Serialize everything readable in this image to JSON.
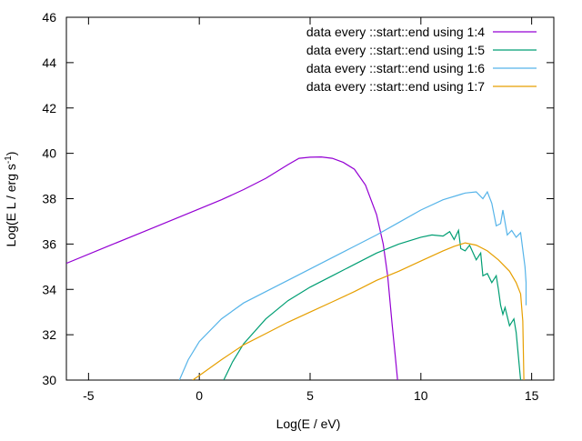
{
  "chart_data": {
    "type": "line",
    "xlabel": "Log(E / eV)",
    "ylabel": {
      "main": "Log(E L / erg s",
      "sup": "-1",
      "close": ")"
    },
    "xlim": [
      -6,
      16
    ],
    "ylim": [
      30,
      46
    ],
    "x_ticks": [
      -5,
      0,
      5,
      10,
      15
    ],
    "y_ticks": [
      30,
      32,
      34,
      36,
      38,
      40,
      42,
      44,
      46
    ],
    "grid": false,
    "legend_position": "top-right",
    "series": [
      {
        "name": "data every ::start::end using 1:4",
        "color": "#9400d3",
        "points": [
          [
            -6,
            35.15
          ],
          [
            -4,
            35.95
          ],
          [
            -2,
            36.75
          ],
          [
            0,
            37.55
          ],
          [
            1,
            37.95
          ],
          [
            2,
            38.4
          ],
          [
            3,
            38.9
          ],
          [
            4,
            39.5
          ],
          [
            4.5,
            39.78
          ],
          [
            5,
            39.83
          ],
          [
            5.5,
            39.84
          ],
          [
            6,
            39.78
          ],
          [
            6.5,
            39.6
          ],
          [
            7,
            39.3
          ],
          [
            7.5,
            38.6
          ],
          [
            8,
            37.3
          ],
          [
            8.3,
            36.0
          ],
          [
            8.5,
            34.6
          ],
          [
            8.7,
            32.5
          ],
          [
            8.85,
            31.0
          ],
          [
            8.95,
            30.0
          ]
        ]
      },
      {
        "name": "data every ::start::end using 1:5",
        "color": "#009e73",
        "points": [
          [
            1.1,
            30.0
          ],
          [
            1.5,
            30.8
          ],
          [
            2,
            31.6
          ],
          [
            3,
            32.7
          ],
          [
            4,
            33.5
          ],
          [
            5,
            34.1
          ],
          [
            6,
            34.6
          ],
          [
            7,
            35.1
          ],
          [
            8,
            35.6
          ],
          [
            9,
            36.0
          ],
          [
            10,
            36.3
          ],
          [
            10.5,
            36.4
          ],
          [
            11,
            36.35
          ],
          [
            11.3,
            36.55
          ],
          [
            11.5,
            36.2
          ],
          [
            11.7,
            36.6
          ],
          [
            11.8,
            35.8
          ],
          [
            12.0,
            35.7
          ],
          [
            12.2,
            35.95
          ],
          [
            12.5,
            35.3
          ],
          [
            12.7,
            35.6
          ],
          [
            12.8,
            34.6
          ],
          [
            13.0,
            34.7
          ],
          [
            13.2,
            34.3
          ],
          [
            13.4,
            34.6
          ],
          [
            13.5,
            34.0
          ],
          [
            13.6,
            33.3
          ],
          [
            13.7,
            32.9
          ],
          [
            13.8,
            33.2
          ],
          [
            14.0,
            32.4
          ],
          [
            14.2,
            32.7
          ],
          [
            14.3,
            32.1
          ],
          [
            14.5,
            30.0
          ]
        ]
      },
      {
        "name": "data every ::start::end using 1:6",
        "color": "#56b4e9",
        "points": [
          [
            -0.9,
            30.0
          ],
          [
            -0.5,
            30.9
          ],
          [
            0,
            31.7
          ],
          [
            1,
            32.7
          ],
          [
            2,
            33.4
          ],
          [
            3,
            33.9
          ],
          [
            4,
            34.4
          ],
          [
            5,
            34.9
          ],
          [
            6,
            35.4
          ],
          [
            7,
            35.9
          ],
          [
            8,
            36.4
          ],
          [
            9,
            36.95
          ],
          [
            10,
            37.5
          ],
          [
            11,
            37.95
          ],
          [
            12,
            38.25
          ],
          [
            12.5,
            38.3
          ],
          [
            12.8,
            38.0
          ],
          [
            13.0,
            38.3
          ],
          [
            13.2,
            37.8
          ],
          [
            13.4,
            36.8
          ],
          [
            13.6,
            36.9
          ],
          [
            13.7,
            37.5
          ],
          [
            13.9,
            36.4
          ],
          [
            14.1,
            36.6
          ],
          [
            14.3,
            36.3
          ],
          [
            14.5,
            36.5
          ],
          [
            14.7,
            35.0
          ],
          [
            14.75,
            34.3
          ],
          [
            14.75,
            33.3
          ]
        ]
      },
      {
        "name": "data every ::start::end using 1:7",
        "color": "#e69f00",
        "points": [
          [
            -0.3,
            30.0
          ],
          [
            0,
            30.2
          ],
          [
            1,
            30.9
          ],
          [
            2,
            31.55
          ],
          [
            3,
            32.05
          ],
          [
            4,
            32.55
          ],
          [
            5,
            33.0
          ],
          [
            6,
            33.45
          ],
          [
            7,
            33.9
          ],
          [
            8,
            34.4
          ],
          [
            9,
            34.8
          ],
          [
            10,
            35.25
          ],
          [
            11,
            35.7
          ],
          [
            11.5,
            35.9
          ],
          [
            12,
            36.05
          ],
          [
            12.5,
            35.95
          ],
          [
            13,
            35.7
          ],
          [
            13.5,
            35.3
          ],
          [
            14,
            34.8
          ],
          [
            14.3,
            34.3
          ],
          [
            14.5,
            33.8
          ],
          [
            14.6,
            32.6
          ],
          [
            14.65,
            30.0
          ]
        ]
      }
    ]
  }
}
